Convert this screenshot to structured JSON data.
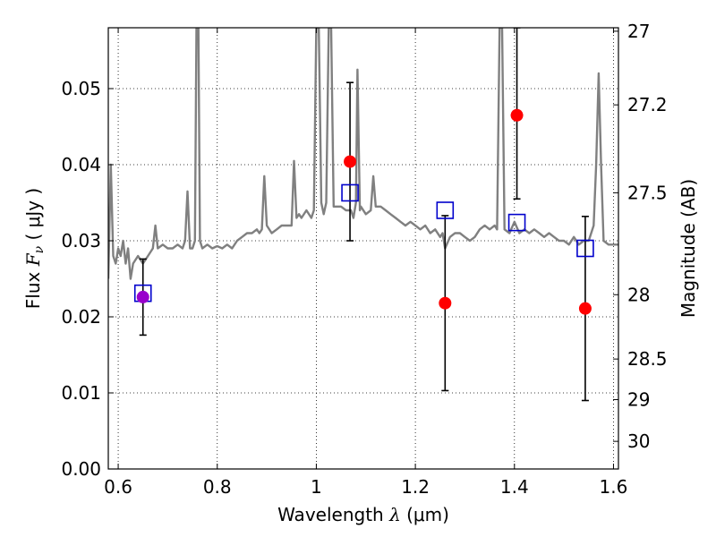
{
  "chart_data": {
    "type": "line",
    "xlabel": {
      "prefix": "Wavelength  ",
      "symbol": "λ",
      "unit": " (μm)"
    },
    "ylabel": {
      "prefix": "Flux  ",
      "symbol": "F",
      "subscript": "ν",
      "unit": "  ( μJy )"
    },
    "ylabel_right": "Magnitude (AB)",
    "xlim": [
      0.58,
      1.61
    ],
    "ylim": [
      0.0,
      0.058
    ],
    "grid": true,
    "x_ticks": [
      0.6,
      0.8,
      1.0,
      1.2,
      1.4,
      1.6
    ],
    "x_tick_labels": [
      "0.6",
      "0.8",
      "1",
      "1.2",
      "1.4",
      "1.6"
    ],
    "y_ticks": [
      0.0,
      0.01,
      0.02,
      0.03,
      0.04,
      0.05
    ],
    "y_tick_labels": [
      "0.00",
      "0.01",
      "0.02",
      "0.03",
      "0.04",
      "0.05"
    ],
    "mag_ticks": [
      27,
      27.2,
      27.5,
      28,
      28.5,
      29,
      30
    ],
    "mag_tick_labels": [
      "27",
      "27.2",
      "27.5",
      "28",
      "28.5",
      "29",
      "30"
    ],
    "colors": {
      "spectrum": "#808080",
      "observed": "#ff0000",
      "model": "#0000cc",
      "overlap": "#9900cc",
      "errorbar": "#000000"
    },
    "spectrum": [
      [
        0.58,
        0.025
      ],
      [
        0.585,
        0.04
      ],
      [
        0.59,
        0.028
      ],
      [
        0.595,
        0.027
      ],
      [
        0.6,
        0.029
      ],
      [
        0.605,
        0.028
      ],
      [
        0.61,
        0.03
      ],
      [
        0.615,
        0.027
      ],
      [
        0.62,
        0.029
      ],
      [
        0.625,
        0.025
      ],
      [
        0.63,
        0.027
      ],
      [
        0.64,
        0.028
      ],
      [
        0.65,
        0.027
      ],
      [
        0.66,
        0.028
      ],
      [
        0.67,
        0.029
      ],
      [
        0.675,
        0.032
      ],
      [
        0.68,
        0.029
      ],
      [
        0.69,
        0.0295
      ],
      [
        0.7,
        0.029
      ],
      [
        0.71,
        0.029
      ],
      [
        0.72,
        0.0295
      ],
      [
        0.73,
        0.029
      ],
      [
        0.735,
        0.03
      ],
      [
        0.74,
        0.0365
      ],
      [
        0.745,
        0.029
      ],
      [
        0.75,
        0.029
      ],
      [
        0.755,
        0.03
      ],
      [
        0.758,
        0.058
      ],
      [
        0.762,
        0.058
      ],
      [
        0.765,
        0.03
      ],
      [
        0.77,
        0.029
      ],
      [
        0.78,
        0.0295
      ],
      [
        0.79,
        0.029
      ],
      [
        0.8,
        0.0293
      ],
      [
        0.81,
        0.029
      ],
      [
        0.82,
        0.0295
      ],
      [
        0.83,
        0.029
      ],
      [
        0.84,
        0.03
      ],
      [
        0.85,
        0.0305
      ],
      [
        0.86,
        0.031
      ],
      [
        0.87,
        0.031
      ],
      [
        0.88,
        0.0315
      ],
      [
        0.885,
        0.031
      ],
      [
        0.89,
        0.0315
      ],
      [
        0.895,
        0.0385
      ],
      [
        0.9,
        0.032
      ],
      [
        0.91,
        0.031
      ],
      [
        0.92,
        0.0315
      ],
      [
        0.93,
        0.032
      ],
      [
        0.94,
        0.032
      ],
      [
        0.95,
        0.032
      ],
      [
        0.955,
        0.0405
      ],
      [
        0.96,
        0.033
      ],
      [
        0.965,
        0.0335
      ],
      [
        0.97,
        0.033
      ],
      [
        0.98,
        0.034
      ],
      [
        0.99,
        0.033
      ],
      [
        0.995,
        0.034
      ],
      [
        1.0,
        0.058
      ],
      [
        1.005,
        0.058
      ],
      [
        1.01,
        0.035
      ],
      [
        1.015,
        0.0335
      ],
      [
        1.02,
        0.035
      ],
      [
        1.025,
        0.058
      ],
      [
        1.03,
        0.058
      ],
      [
        1.035,
        0.0345
      ],
      [
        1.05,
        0.0345
      ],
      [
        1.06,
        0.034
      ],
      [
        1.07,
        0.034
      ],
      [
        1.075,
        0.033
      ],
      [
        1.08,
        0.035
      ],
      [
        1.083,
        0.0525
      ],
      [
        1.088,
        0.034
      ],
      [
        1.09,
        0.0345
      ],
      [
        1.1,
        0.0335
      ],
      [
        1.11,
        0.034
      ],
      [
        1.115,
        0.0385
      ],
      [
        1.12,
        0.0345
      ],
      [
        1.13,
        0.0345
      ],
      [
        1.14,
        0.034
      ],
      [
        1.15,
        0.0335
      ],
      [
        1.16,
        0.033
      ],
      [
        1.17,
        0.0325
      ],
      [
        1.18,
        0.032
      ],
      [
        1.19,
        0.0325
      ],
      [
        1.2,
        0.032
      ],
      [
        1.21,
        0.0315
      ],
      [
        1.22,
        0.032
      ],
      [
        1.23,
        0.031
      ],
      [
        1.24,
        0.0315
      ],
      [
        1.25,
        0.0305
      ],
      [
        1.255,
        0.031
      ],
      [
        1.26,
        0.029
      ],
      [
        1.27,
        0.0305
      ],
      [
        1.28,
        0.031
      ],
      [
        1.29,
        0.031
      ],
      [
        1.3,
        0.0305
      ],
      [
        1.31,
        0.03
      ],
      [
        1.32,
        0.0305
      ],
      [
        1.33,
        0.0315
      ],
      [
        1.34,
        0.032
      ],
      [
        1.35,
        0.0315
      ],
      [
        1.36,
        0.032
      ],
      [
        1.365,
        0.0315
      ],
      [
        1.37,
        0.058
      ],
      [
        1.375,
        0.058
      ],
      [
        1.38,
        0.0315
      ],
      [
        1.39,
        0.031
      ],
      [
        1.4,
        0.0325
      ],
      [
        1.41,
        0.031
      ],
      [
        1.42,
        0.0315
      ],
      [
        1.43,
        0.031
      ],
      [
        1.44,
        0.0315
      ],
      [
        1.45,
        0.031
      ],
      [
        1.46,
        0.0305
      ],
      [
        1.47,
        0.031
      ],
      [
        1.48,
        0.0305
      ],
      [
        1.49,
        0.03
      ],
      [
        1.5,
        0.03
      ],
      [
        1.51,
        0.0295
      ],
      [
        1.52,
        0.0305
      ],
      [
        1.53,
        0.0295
      ],
      [
        1.54,
        0.03
      ],
      [
        1.55,
        0.03
      ],
      [
        1.56,
        0.032
      ],
      [
        1.565,
        0.04
      ],
      [
        1.57,
        0.052
      ],
      [
        1.575,
        0.04
      ],
      [
        1.58,
        0.03
      ],
      [
        1.59,
        0.0295
      ],
      [
        1.6,
        0.0295
      ],
      [
        1.61,
        0.0295
      ]
    ],
    "observed_points": [
      {
        "x": 0.65,
        "y": 0.0226,
        "yerr_low": 0.0176,
        "yerr_high": 0.0276
      },
      {
        "x": 1.068,
        "y": 0.0404,
        "yerr_low": 0.03,
        "yerr_high": 0.0508
      },
      {
        "x": 1.26,
        "y": 0.0218,
        "yerr_low": 0.0103,
        "yerr_high": 0.0333
      },
      {
        "x": 1.405,
        "y": 0.0465,
        "yerr_low": 0.0355,
        "yerr_high": 0.058
      },
      {
        "x": 1.543,
        "y": 0.0211,
        "yerr_low": 0.009,
        "yerr_high": 0.0332
      }
    ],
    "model_points": [
      {
        "x": 0.65,
        "y": 0.0231
      },
      {
        "x": 1.068,
        "y": 0.0363
      },
      {
        "x": 1.26,
        "y": 0.034
      },
      {
        "x": 1.405,
        "y": 0.0324
      },
      {
        "x": 1.543,
        "y": 0.029
      }
    ]
  }
}
